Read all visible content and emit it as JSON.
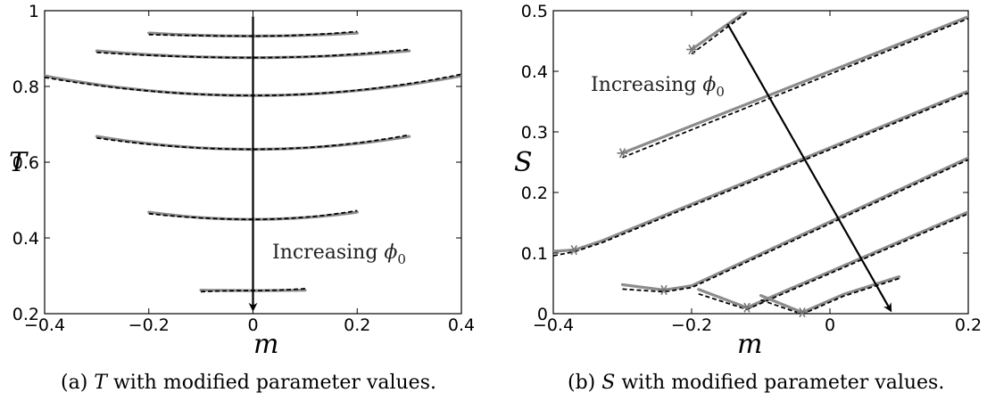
{
  "chart_data": [
    {
      "type": "line",
      "panel_label": "(a)",
      "caption_parts": [
        "T",
        " with modified parameter values."
      ],
      "xlabel": "m",
      "ylabel": "T",
      "xlim": [
        -0.4,
        0.4
      ],
      "ylim": [
        0.2,
        1.0
      ],
      "xticks": [
        "−0.4",
        "−0.2",
        "0",
        "0.2",
        "0.4"
      ],
      "xtick_values": [
        -0.4,
        -0.2,
        0,
        0.2,
        0.4
      ],
      "yticks": [
        "0.2",
        "0.4",
        "0.6",
        "0.8",
        "1"
      ],
      "ytick_values": [
        0.2,
        0.4,
        0.6,
        0.8,
        1.0
      ],
      "annotation": {
        "text": "Increasing ",
        "var": "ϕ",
        "sub": "0"
      },
      "arrow": {
        "from": [
          0,
          0.985
        ],
        "to": [
          0,
          0.21
        ]
      },
      "curves": [
        {
          "xrange": [
            -0.2,
            0.2
          ],
          "y_center": 0.933,
          "y_edge": 0.941
        },
        {
          "xrange": [
            -0.3,
            0.3
          ],
          "y_center": 0.876,
          "y_edge": 0.894
        },
        {
          "xrange": [
            -0.4,
            0.4
          ],
          "y_center": 0.776,
          "y_edge": 0.828
        },
        {
          "xrange": [
            -0.3,
            0.3
          ],
          "y_center": 0.634,
          "y_edge": 0.668
        },
        {
          "xrange": [
            -0.2,
            0.2
          ],
          "y_center": 0.449,
          "y_edge": 0.468
        },
        {
          "xrange": [
            -0.1,
            0.1
          ],
          "y_center": 0.261,
          "y_edge": 0.262
        }
      ],
      "colors": {
        "exact": "#8c8c8c",
        "approx": "#000000"
      }
    },
    {
      "type": "line",
      "panel_label": "(b)",
      "caption_parts": [
        "S",
        " with modified parameter values."
      ],
      "xlabel": "m",
      "ylabel": "S",
      "xlim": [
        -0.4,
        0.2
      ],
      "ylim": [
        0,
        0.5
      ],
      "xticks": [
        "−0.4",
        "−0.2",
        "0",
        "0.2"
      ],
      "xtick_values": [
        -0.4,
        -0.2,
        0,
        0.2
      ],
      "yticks": [
        "0",
        "0.1",
        "0.2",
        "0.3",
        "0.4",
        "0.5"
      ],
      "ytick_values": [
        0,
        0.1,
        0.2,
        0.3,
        0.4,
        0.5
      ],
      "annotation": {
        "text": "Increasing ",
        "var": "ϕ",
        "sub": "0"
      },
      "arrow": {
        "from": [
          -0.148,
          0.478
        ],
        "to": [
          0.088,
          0.005
        ]
      },
      "curves": [
        {
          "points": [
            [
              -0.2,
              0.436
            ],
            [
              -0.12,
              0.5
            ]
          ],
          "star": [
            -0.2,
            0.436
          ]
        },
        {
          "points": [
            [
              -0.3,
              0.265
            ],
            [
              0.2,
              0.49
            ]
          ],
          "star": [
            -0.3,
            0.265
          ]
        },
        {
          "points": [
            [
              -0.4,
              0.103
            ],
            [
              -0.37,
              0.105
            ],
            [
              -0.33,
              0.12
            ],
            [
              0.2,
              0.367
            ]
          ],
          "star": [
            -0.37,
            0.105
          ]
        },
        {
          "points": [
            [
              -0.3,
              0.048
            ],
            [
              -0.24,
              0.039
            ],
            [
              -0.2,
              0.046
            ],
            [
              0.2,
              0.257
            ]
          ],
          "star": [
            -0.24,
            0.039
          ]
        },
        {
          "points": [
            [
              -0.19,
              0.04
            ],
            [
              -0.12,
              0.01
            ],
            [
              -0.09,
              0.025
            ],
            [
              0.2,
              0.168
            ]
          ],
          "star": [
            -0.12,
            0.01
          ]
        },
        {
          "points": [
            [
              -0.1,
              0.03
            ],
            [
              -0.04,
              0.002
            ],
            [
              0.02,
              0.032
            ],
            [
              0.1,
              0.061
            ]
          ],
          "star": [
            -0.04,
            0.002
          ]
        }
      ],
      "colors": {
        "exact": "#8c8c8c",
        "approx": "#000000"
      }
    }
  ]
}
